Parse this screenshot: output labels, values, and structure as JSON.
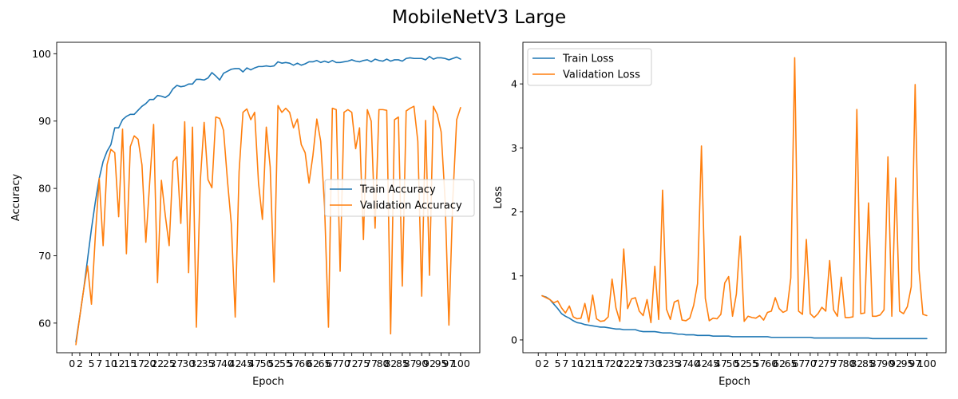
{
  "figure": {
    "title": "MobileNetV3 Large"
  },
  "chart_data": [
    {
      "type": "line",
      "xlabel": "Epoch",
      "ylabel": "Accuracy",
      "xlim": [
        -3.95,
        104.95
      ],
      "ylim": [
        55.6,
        101.7
      ],
      "xticks": [
        0,
        2,
        5,
        7,
        10,
        12,
        15,
        17,
        20,
        22,
        25,
        27,
        30,
        32,
        35,
        37,
        40,
        42,
        45,
        47,
        50,
        52,
        55,
        57,
        60,
        62,
        65,
        67,
        70,
        72,
        75,
        77,
        80,
        82,
        85,
        87,
        90,
        92,
        95,
        97,
        100
      ],
      "yticks": [
        60,
        70,
        80,
        90,
        100
      ],
      "grid": false,
      "legend_position": "center-right",
      "x": [
        1,
        2,
        3,
        4,
        5,
        6,
        7,
        8,
        9,
        10,
        11,
        12,
        13,
        14,
        15,
        16,
        17,
        18,
        19,
        20,
        21,
        22,
        23,
        24,
        25,
        26,
        27,
        28,
        29,
        30,
        31,
        32,
        33,
        34,
        35,
        36,
        37,
        38,
        39,
        40,
        41,
        42,
        43,
        44,
        45,
        46,
        47,
        48,
        49,
        50,
        51,
        52,
        53,
        54,
        55,
        56,
        57,
        58,
        59,
        60,
        61,
        62,
        63,
        64,
        65,
        66,
        67,
        68,
        69,
        70,
        71,
        72,
        73,
        74,
        75,
        76,
        77,
        78,
        79,
        80,
        81,
        82,
        83,
        84,
        85,
        86,
        87,
        88,
        89,
        90,
        91,
        92,
        93,
        94,
        95,
        96,
        97,
        98,
        99,
        100
      ],
      "series": [
        {
          "name": "Train Accuracy",
          "color": "#1f77b4",
          "values": [
            57.2,
            61,
            65,
            69.5,
            74,
            78,
            81.5,
            84,
            85.5,
            86.5,
            89,
            89,
            90.2,
            90.7,
            91,
            91,
            91.6,
            92.2,
            92.6,
            93.2,
            93.2,
            93.8,
            93.7,
            93.5,
            93.9,
            94.8,
            95.3,
            95.1,
            95.2,
            95.5,
            95.5,
            96.2,
            96.2,
            96.1,
            96.4,
            97.2,
            96.7,
            96.1,
            97.1,
            97.4,
            97.7,
            97.8,
            97.8,
            97.3,
            97.9,
            97.6,
            97.9,
            98.1,
            98.1,
            98.2,
            98.1,
            98.2,
            98.8,
            98.6,
            98.7,
            98.6,
            98.3,
            98.6,
            98.3,
            98.5,
            98.8,
            98.8,
            99,
            98.7,
            98.9,
            98.7,
            99,
            98.7,
            98.7,
            98.8,
            98.9,
            99.1,
            98.9,
            98.8,
            99,
            99.1,
            98.8,
            99.2,
            99,
            98.9,
            99.2,
            98.9,
            99.1,
            99.1,
            98.9,
            99.3,
            99.4,
            99.3,
            99.3,
            99.3,
            99.1,
            99.6,
            99.2,
            99.4,
            99.4,
            99.3,
            99.1,
            99.3,
            99.5,
            99.2
          ]
        },
        {
          "name": "Validation Accuracy",
          "color": "#ff7f0e",
          "values": [
            56.8,
            61,
            65,
            68.5,
            62.8,
            73,
            81.5,
            71.5,
            83.5,
            85.8,
            85.3,
            75.8,
            88.8,
            70.3,
            86.2,
            87.8,
            87.3,
            83.5,
            72,
            81,
            89.5,
            66,
            81.2,
            76,
            71.5,
            84,
            84.7,
            74.8,
            89.9,
            67.5,
            89.1,
            59.4,
            81,
            89.8,
            81.3,
            80.1,
            90.6,
            90.4,
            88.6,
            81.2,
            74.7,
            60.9,
            82.5,
            91.3,
            91.8,
            90.2,
            91.3,
            80.8,
            75.4,
            89.1,
            83.2,
            66.1,
            92.3,
            91.3,
            91.9,
            91.3,
            89,
            90.3,
            86.5,
            85.3,
            80.8,
            84.9,
            90.3,
            87,
            77.3,
            59.4,
            91.9,
            91.7,
            67.7,
            91.3,
            91.7,
            91.3,
            85.9,
            89,
            72.4,
            91.7,
            90,
            74.1,
            91.7,
            91.7,
            91.6,
            58.4,
            90.2,
            90.6,
            65.5,
            91.5,
            91.9,
            92.2,
            87,
            64,
            90.1,
            67.1,
            92.2,
            91,
            88.4,
            78.5,
            59.7,
            78.4,
            90.2,
            92
          ]
        }
      ]
    },
    {
      "type": "line",
      "xlabel": "Epoch",
      "ylabel": "Loss",
      "xlim": [
        -3.95,
        104.95
      ],
      "ylim": [
        -0.2,
        4.65
      ],
      "xticks": [
        0,
        2,
        5,
        7,
        10,
        12,
        15,
        17,
        20,
        22,
        25,
        27,
        30,
        32,
        35,
        37,
        40,
        42,
        45,
        47,
        50,
        52,
        55,
        57,
        60,
        62,
        65,
        67,
        70,
        72,
        75,
        77,
        80,
        82,
        85,
        87,
        90,
        92,
        95,
        97,
        100
      ],
      "yticks": [
        0,
        1,
        2,
        3,
        4
      ],
      "grid": false,
      "legend_position": "top-left",
      "x": [
        1,
        2,
        3,
        4,
        5,
        6,
        7,
        8,
        9,
        10,
        11,
        12,
        13,
        14,
        15,
        16,
        17,
        18,
        19,
        20,
        21,
        22,
        23,
        24,
        25,
        26,
        27,
        28,
        29,
        30,
        31,
        32,
        33,
        34,
        35,
        36,
        37,
        38,
        39,
        40,
        41,
        42,
        43,
        44,
        45,
        46,
        47,
        48,
        49,
        50,
        51,
        52,
        53,
        54,
        55,
        56,
        57,
        58,
        59,
        60,
        61,
        62,
        63,
        64,
        65,
        66,
        67,
        68,
        69,
        70,
        71,
        72,
        73,
        74,
        75,
        76,
        77,
        78,
        79,
        80,
        81,
        82,
        83,
        84,
        85,
        86,
        87,
        88,
        89,
        90,
        91,
        92,
        93,
        94,
        95,
        96,
        97,
        98,
        99,
        100
      ],
      "series": [
        {
          "name": "Train Loss",
          "color": "#1f77b4",
          "values": [
            0.69,
            0.67,
            0.63,
            0.56,
            0.49,
            0.41,
            0.37,
            0.34,
            0.3,
            0.27,
            0.26,
            0.24,
            0.23,
            0.22,
            0.21,
            0.2,
            0.2,
            0.19,
            0.18,
            0.17,
            0.17,
            0.16,
            0.16,
            0.16,
            0.16,
            0.14,
            0.13,
            0.13,
            0.13,
            0.13,
            0.12,
            0.11,
            0.11,
            0.11,
            0.1,
            0.09,
            0.09,
            0.08,
            0.08,
            0.08,
            0.07,
            0.07,
            0.07,
            0.07,
            0.06,
            0.06,
            0.06,
            0.06,
            0.06,
            0.05,
            0.05,
            0.05,
            0.05,
            0.05,
            0.05,
            0.05,
            0.05,
            0.05,
            0.05,
            0.04,
            0.04,
            0.04,
            0.04,
            0.04,
            0.04,
            0.04,
            0.04,
            0.04,
            0.04,
            0.04,
            0.03,
            0.03,
            0.03,
            0.03,
            0.03,
            0.03,
            0.03,
            0.03,
            0.03,
            0.03,
            0.03,
            0.03,
            0.03,
            0.03,
            0.03,
            0.02,
            0.02,
            0.02,
            0.02,
            0.02,
            0.02,
            0.02,
            0.02,
            0.02,
            0.02,
            0.02,
            0.02,
            0.02,
            0.02,
            0.02
          ]
        },
        {
          "name": "Validation Loss",
          "color": "#ff7f0e",
          "values": [
            0.69,
            0.66,
            0.63,
            0.58,
            0.61,
            0.5,
            0.42,
            0.53,
            0.36,
            0.33,
            0.34,
            0.57,
            0.28,
            0.7,
            0.33,
            0.29,
            0.3,
            0.36,
            0.95,
            0.5,
            0.29,
            1.42,
            0.49,
            0.64,
            0.66,
            0.45,
            0.38,
            0.63,
            0.27,
            1.15,
            0.32,
            2.34,
            0.48,
            0.32,
            0.59,
            0.62,
            0.31,
            0.3,
            0.34,
            0.54,
            0.88,
            3.03,
            0.65,
            0.3,
            0.34,
            0.33,
            0.4,
            0.89,
            0.99,
            0.37,
            0.72,
            1.62,
            0.29,
            0.37,
            0.35,
            0.34,
            0.38,
            0.31,
            0.43,
            0.45,
            0.66,
            0.49,
            0.43,
            0.46,
            0.97,
            4.41,
            0.45,
            0.4,
            1.57,
            0.41,
            0.35,
            0.41,
            0.51,
            0.45,
            1.24,
            0.47,
            0.37,
            0.98,
            0.35,
            0.35,
            0.36,
            3.6,
            0.41,
            0.42,
            2.14,
            0.37,
            0.37,
            0.39,
            0.47,
            2.86,
            0.37,
            2.53,
            0.45,
            0.41,
            0.52,
            0.83,
            3.99,
            1.09,
            0.4,
            0.38
          ]
        }
      ]
    }
  ]
}
